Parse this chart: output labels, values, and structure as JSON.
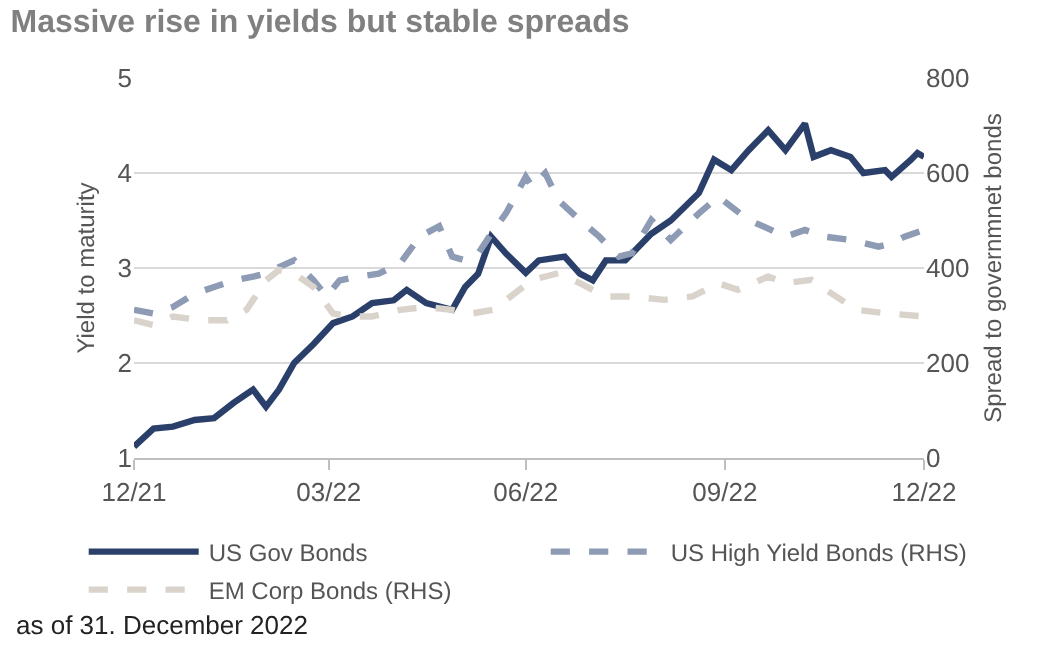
{
  "chart_data": {
    "type": "line",
    "title": "Massive rise in yields but stable spreads",
    "ylabel": "Yield to maturity",
    "y2label": "Spread to governmnet bonds",
    "xlim": [
      "2021-12-31",
      "2022-12-31"
    ],
    "xticks": [
      {
        "value": "2021-12-31",
        "label": "12/21"
      },
      {
        "value": "2022-03-31",
        "label": "03/22"
      },
      {
        "value": "2022-06-30",
        "label": "06/22"
      },
      {
        "value": "2022-09-30",
        "label": "09/22"
      },
      {
        "value": "2022-12-31",
        "label": "12/22"
      }
    ],
    "ylim": [
      1,
      5
    ],
    "yticks": [
      1,
      2,
      3,
      4,
      5
    ],
    "y2lim": [
      0,
      800
    ],
    "y2ticks": [
      0,
      200,
      400,
      600,
      800
    ],
    "grid": "y",
    "legend": "bottom",
    "marker": "none",
    "annotations": [
      "as of 31. December 2022"
    ],
    "series": [
      {
        "name": "US Gov Bonds",
        "color": "#2b3f6b",
        "line_style": "solid",
        "x": [
          "2021-12-31",
          "2022-01-09",
          "2022-01-18",
          "2022-01-28",
          "2022-02-06",
          "2022-02-15",
          "2022-02-24",
          "2022-03-02",
          "2022-03-08",
          "2022-03-15",
          "2022-03-24",
          "2022-04-02",
          "2022-04-11",
          "2022-04-20",
          "2022-04-30",
          "2022-05-06",
          "2022-05-15",
          "2022-05-27",
          "2022-06-02",
          "2022-06-08",
          "2022-06-14",
          "2022-06-21",
          "2022-06-30",
          "2022-07-06",
          "2022-07-18",
          "2022-07-25",
          "2022-07-31",
          "2022-08-06",
          "2022-08-15",
          "2022-08-27",
          "2022-09-05",
          "2022-09-18",
          "2022-09-25",
          "2022-10-03",
          "2022-10-11",
          "2022-10-20",
          "2022-10-28",
          "2022-11-06",
          "2022-11-10",
          "2022-11-18",
          "2022-11-27",
          "2022-12-03",
          "2022-12-13",
          "2022-12-16",
          "2022-12-25",
          "2022-12-28",
          "2022-12-31"
        ],
        "values": [
          1.12,
          1.31,
          1.33,
          1.4,
          1.42,
          1.58,
          1.72,
          1.54,
          1.72,
          2.0,
          2.2,
          2.42,
          2.49,
          2.63,
          2.66,
          2.77,
          2.63,
          2.56,
          2.8,
          2.94,
          3.33,
          3.15,
          2.95,
          3.08,
          3.12,
          2.94,
          2.87,
          3.08,
          3.08,
          3.36,
          3.5,
          3.79,
          4.14,
          4.03,
          4.24,
          4.45,
          4.24,
          4.52,
          4.17,
          4.24,
          4.17,
          4.0,
          4.03,
          3.96,
          4.14,
          4.21,
          4.17
        ]
      },
      {
        "name": "US High Yield Bonds (RHS)",
        "color": "#8e9bb5",
        "line_style": "dashed",
        "axis": "y2",
        "x": [
          "2021-12-31",
          "2022-01-09",
          "2022-01-18",
          "2022-01-28",
          "2022-02-06",
          "2022-02-15",
          "2022-02-24",
          "2022-03-02",
          "2022-03-08",
          "2022-03-15",
          "2022-03-24",
          "2022-03-30",
          "2022-04-05",
          "2022-04-14",
          "2022-04-23",
          "2022-05-03",
          "2022-05-12",
          "2022-05-21",
          "2022-05-27",
          "2022-06-02",
          "2022-06-08",
          "2022-06-14",
          "2022-06-21",
          "2022-06-30",
          "2022-07-03",
          "2022-07-09",
          "2022-07-15",
          "2022-07-25",
          "2022-08-03",
          "2022-08-12",
          "2022-08-18",
          "2022-08-27",
          "2022-09-05",
          "2022-09-18",
          "2022-09-27",
          "2022-10-03",
          "2022-10-11",
          "2022-10-18",
          "2022-10-28",
          "2022-11-06",
          "2022-11-15",
          "2022-11-27",
          "2022-12-10",
          "2022-12-16",
          "2022-12-22",
          "2022-12-31"
        ],
        "values": [
          312,
          304,
          318,
          346,
          360,
          374,
          382,
          388,
          402,
          416,
          374,
          340,
          374,
          382,
          388,
          410,
          466,
          488,
          424,
          416,
          430,
          472,
          516,
          592,
          571,
          600,
          543,
          501,
          466,
          424,
          431,
          501,
          459,
          515,
          550,
          529,
          501,
          487,
          466,
          480,
          466,
          459,
          445,
          452,
          466,
          480
        ]
      },
      {
        "name": "EM Corp Bonds (RHS)",
        "color": "#d9d3cc",
        "line_style": "dashed",
        "axis": "y2",
        "x": [
          "2021-12-31",
          "2022-01-09",
          "2022-01-18",
          "2022-01-31",
          "2022-02-12",
          "2022-02-21",
          "2022-03-02",
          "2022-03-08",
          "2022-03-15",
          "2022-03-24",
          "2022-04-02",
          "2022-04-11",
          "2022-04-20",
          "2022-05-03",
          "2022-05-15",
          "2022-05-27",
          "2022-06-05",
          "2022-06-15",
          "2022-06-27",
          "2022-07-03",
          "2022-07-15",
          "2022-07-25",
          "2022-08-06",
          "2022-08-18",
          "2022-09-02",
          "2022-09-15",
          "2022-09-27",
          "2022-10-06",
          "2022-10-20",
          "2022-10-28",
          "2022-11-09",
          "2022-11-18",
          "2022-11-30",
          "2022-12-13",
          "2022-12-31"
        ],
        "values": [
          290,
          280,
          298,
          290,
          290,
          312,
          374,
          396,
          388,
          360,
          304,
          298,
          298,
          312,
          318,
          312,
          304,
          312,
          354,
          375,
          389,
          368,
          340,
          340,
          333,
          340,
          368,
          354,
          382,
          368,
          375,
          347,
          312,
          305,
          298
        ]
      }
    ]
  }
}
